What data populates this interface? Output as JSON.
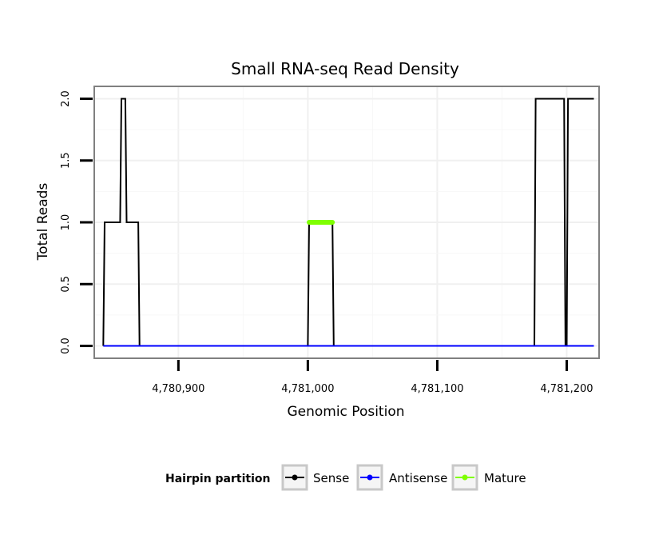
{
  "chart_data": {
    "type": "line",
    "title": "Small RNA-seq Read Density",
    "xlabel": "Genomic Position",
    "ylabel": "Total Reads",
    "xlim": [
      4780835,
      4781225
    ],
    "ylim": [
      -0.1,
      2.1
    ],
    "x_ticks": [
      4780900,
      4781000,
      4781100,
      4781200
    ],
    "x_tick_labels": [
      "4,780,900",
      "4,781,000",
      "4,781,100",
      "4,781,200"
    ],
    "y_ticks": [
      0,
      0.5,
      1,
      1.5,
      2
    ],
    "y_tick_labels": [
      "0.0",
      "0.5",
      "1.0",
      "1.5",
      "2.0"
    ],
    "grid": true,
    "legend": {
      "title": "Hairpin partition",
      "position": "bottom",
      "entries": [
        "Sense",
        "Antisense",
        "Mature"
      ]
    },
    "series": [
      {
        "name": "Sense",
        "color": "#000000",
        "x": [
          4780842,
          4780843,
          4780855,
          4780856,
          4780859,
          4780860,
          4780869,
          4780870,
          4781000,
          4781001,
          4781019,
          4781020,
          4781175,
          4781176,
          4781198,
          4781199,
          4781200,
          4781201,
          4781221
        ],
        "y": [
          0,
          1,
          1,
          2,
          2,
          1,
          1,
          0,
          0,
          1,
          1,
          0,
          0,
          2,
          2,
          0,
          0,
          2,
          2
        ]
      },
      {
        "name": "Antisense",
        "color": "#0000ff",
        "x": [
          4780842,
          4781221
        ],
        "y": [
          0,
          0
        ]
      },
      {
        "name": "Mature",
        "color": "#7fff00",
        "x": [
          4781001,
          4781019
        ],
        "y": [
          1,
          1
        ]
      }
    ]
  }
}
